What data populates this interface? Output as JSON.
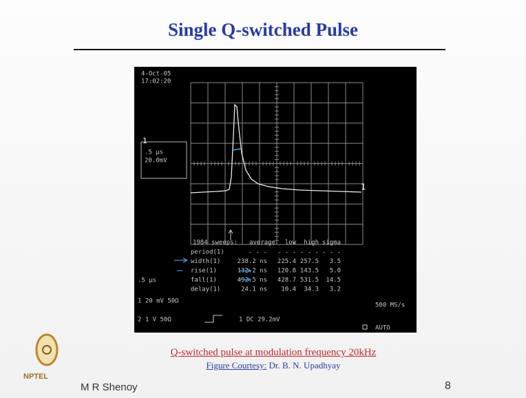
{
  "slide": {
    "title": "Single Q-switched Pulse",
    "caption": "Q-switched pulse at modulation frequency 20kHz",
    "courtesy_label": "Figure Courtesy:",
    "courtesy_name": "Dr. B. N. Upadhyay",
    "logo": "NPTEL",
    "author": "M R Shenoy",
    "page": "8"
  },
  "scope": {
    "date": "4-Oct-05",
    "time": "17:02:20",
    "box_channel": "1",
    "box_timebase": ".5 µs",
    "box_volts": "20.0mV",
    "trace_label": "1",
    "stats": {
      "header": [
        "1984 sweeps:",
        "average",
        "low",
        "high",
        "sigma"
      ],
      "rows": [
        [
          "period(1)",
          "- - -",
          "- - -",
          "- - -",
          "- - -"
        ],
        [
          "width(1)",
          "238.2 ns",
          "225.4",
          "257.5",
          "3.5"
        ],
        [
          "rise(1)",
          "132.2 ns",
          "120.8",
          "143.5",
          "5.0"
        ],
        [
          "fall(1)",
          "492.5 ns",
          "428.7",
          "531.5",
          "14.5"
        ],
        [
          "delay(1)",
          "24.1 ns",
          "10.4",
          "34.3",
          "3.2"
        ]
      ]
    },
    "timebase": ".5 µs",
    "ch1": "1  20 mV  50Ω",
    "ch2": "2  1  V  50Ω",
    "trigger": "1  DC 29.2mV",
    "sample_rate": "500 MS/s",
    "mode": "AUTO"
  }
}
